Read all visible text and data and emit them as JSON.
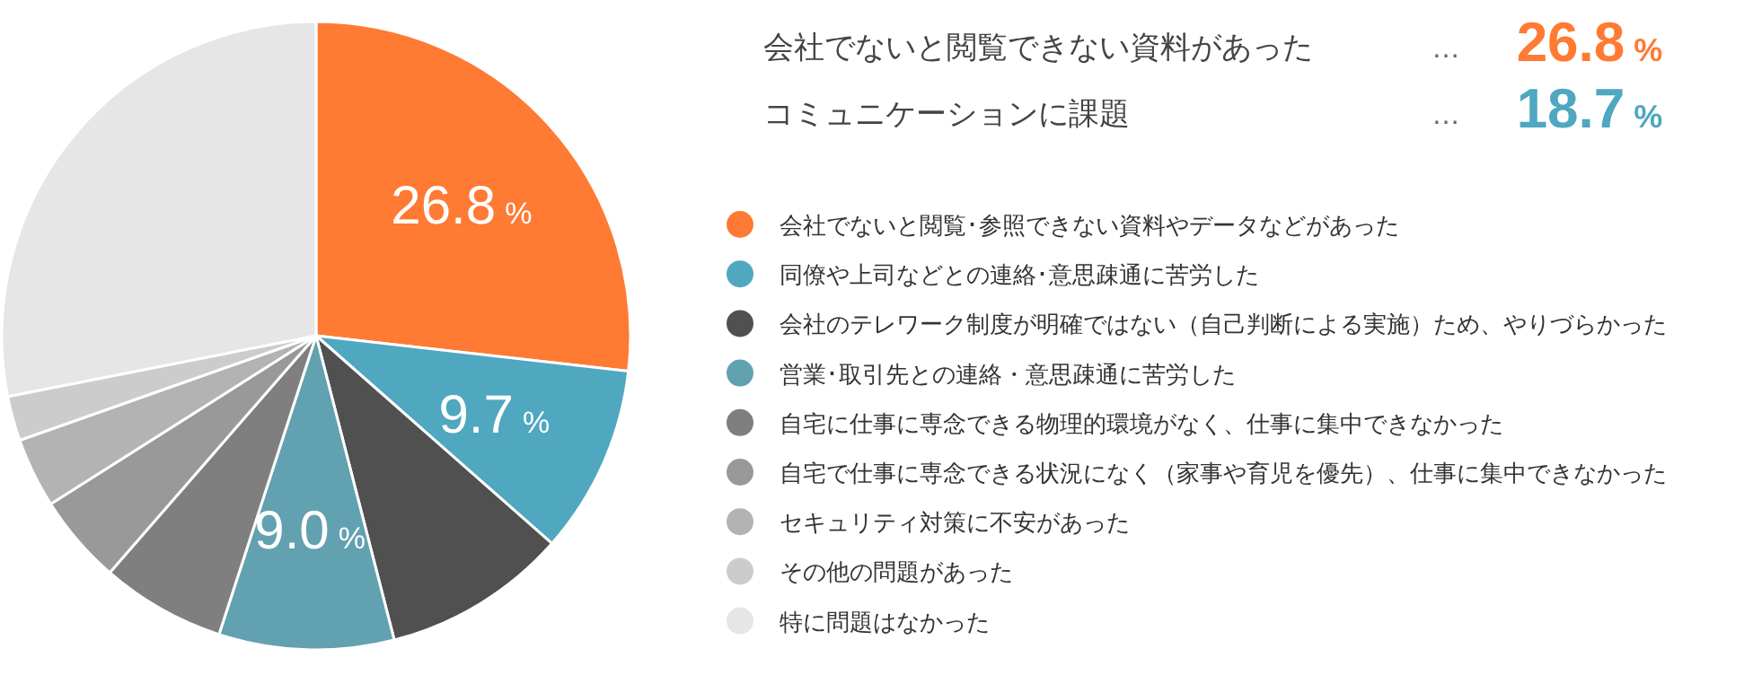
{
  "chart_data": {
    "type": "pie",
    "categories": [
      "会社でないと閲覧･参照できない資料やデータなどがあった",
      "同僚や上司などとの連絡･意思疎通に苦労した",
      "会社のテレワーク制度が明確ではない（自己判断による実施）ため、やりづらかった",
      "営業･取引先との連絡・意思疎通に苦労した",
      "自宅に仕事に専念できる物理的環境がなく、仕事に集中できなかった",
      "自宅で仕事に専念できる状況になく（家事や育児を優先）、仕事に集中できなかった",
      "セキュリティ対策に不安があった",
      "その他の問題があった",
      "特に問題はなかった"
    ],
    "values": [
      26.8,
      9.7,
      9.5,
      9.0,
      6.4,
      4.6,
      3.6,
      2.3,
      28.1
    ],
    "colors": [
      "#ff7a33",
      "#4fa7c0",
      "#505050",
      "#62a1b0",
      "#7f7f7f",
      "#999999",
      "#b3b3b3",
      "#cccccc",
      "#e6e6e6"
    ],
    "value_labels": [
      "26.8 %",
      "9.7 %",
      null,
      "9.0 %",
      null,
      null,
      null,
      null,
      null
    ],
    "annotations": [
      "会社でないと閲覧できない資料があった",
      "…",
      "26.8 %",
      "コミュニケーションに課題",
      "…",
      "18.7 %"
    ],
    "legend": "right"
  }
}
